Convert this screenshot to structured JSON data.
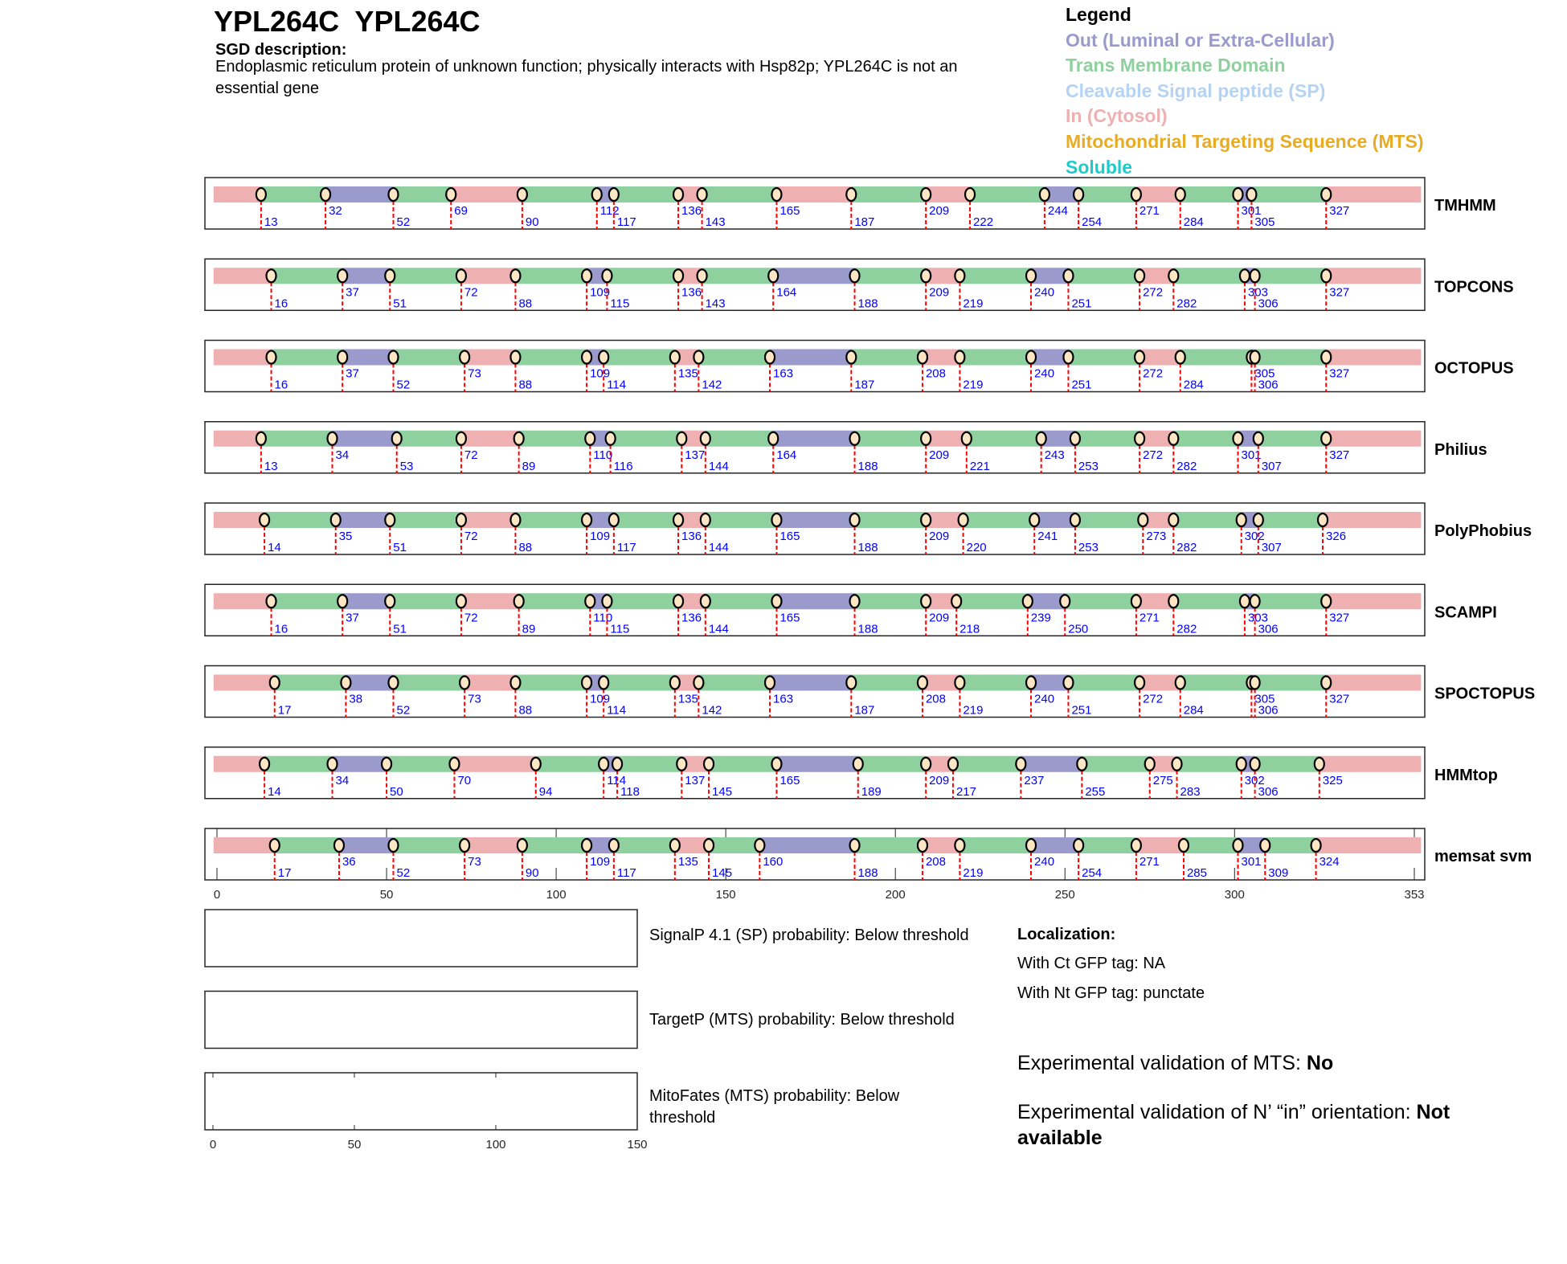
{
  "header": {
    "title": "YPL264C  YPL264C",
    "sgd_label": "SGD description:",
    "sgd_text": "Endoplasmic reticulum protein of unknown function; physically interacts with Hsp82p; YPL264C is not an essential gene"
  },
  "legend": {
    "title": "Legend",
    "items": [
      {
        "label": "Out (Luminal or Extra-Cellular)",
        "color": "#9a9acc"
      },
      {
        "label": "Trans Membrane Domain",
        "color": "#8fd19e"
      },
      {
        "label": "Cleavable Signal peptide (SP)",
        "color": "#b5d3f3"
      },
      {
        "label": "In (Cytosol)",
        "color": "#eeb0b0"
      },
      {
        "label": "Mitochondrial Targeting Sequence (MTS)",
        "color": "#e8ac22"
      },
      {
        "label": "Soluble",
        "color": "#1ccccc"
      }
    ]
  },
  "chart_data": {
    "type": "topology-tracks",
    "xlim": [
      0,
      353
    ],
    "x_ticks": [
      "0",
      "50",
      "100",
      "150",
      "200",
      "250",
      "300",
      "353"
    ],
    "segment_colors": {
      "i": "#eeb0b0",
      "M": "#8fd19e",
      "o": "#9a9acc"
    },
    "tracks": [
      {
        "name": "TMHMM",
        "boundaries": [
          13,
          32,
          52,
          69,
          90,
          112,
          117,
          136,
          143,
          165,
          187,
          209,
          222,
          244,
          254,
          271,
          284,
          301,
          305,
          327
        ],
        "segments": "iMoMiMoMiMiMiMoMiMoMi"
      },
      {
        "name": "TOPCONS",
        "boundaries": [
          16,
          37,
          51,
          72,
          88,
          109,
          115,
          136,
          143,
          164,
          188,
          209,
          219,
          240,
          251,
          272,
          282,
          303,
          306,
          327
        ],
        "segments": "iMoMiMoMiMoMiMoMiMoMi"
      },
      {
        "name": "OCTOPUS",
        "boundaries": [
          16,
          37,
          52,
          73,
          88,
          109,
          114,
          135,
          142,
          163,
          187,
          208,
          219,
          240,
          251,
          272,
          284,
          305,
          306,
          327
        ],
        "segments": "iMoMiMoMiMoMiMoMiMoMi"
      },
      {
        "name": "Philius",
        "boundaries": [
          13,
          34,
          53,
          72,
          89,
          110,
          116,
          137,
          144,
          164,
          188,
          209,
          221,
          243,
          253,
          272,
          282,
          301,
          307,
          327
        ],
        "segments": "iMoMiMoMiMoMiMoMiMoMi"
      },
      {
        "name": "PolyPhobius",
        "boundaries": [
          14,
          35,
          51,
          72,
          88,
          109,
          117,
          136,
          144,
          165,
          188,
          209,
          220,
          241,
          253,
          273,
          282,
          302,
          307,
          326
        ],
        "segments": "iMoMiMoMiMoMiMoMiMoMi"
      },
      {
        "name": "SCAMPI",
        "boundaries": [
          16,
          37,
          51,
          72,
          89,
          110,
          115,
          136,
          144,
          165,
          188,
          209,
          218,
          239,
          250,
          271,
          282,
          303,
          306,
          327
        ],
        "segments": "iMoMiMoMiMoMiMoMiMoMi"
      },
      {
        "name": "SPOCTOPUS",
        "boundaries": [
          17,
          38,
          52,
          73,
          88,
          109,
          114,
          135,
          142,
          163,
          187,
          208,
          219,
          240,
          251,
          272,
          284,
          305,
          306,
          327
        ],
        "segments": "iMoMiMoMiMoMiMoMiMoMi"
      },
      {
        "name": "HMMtop",
        "boundaries": [
          14,
          34,
          50,
          70,
          94,
          114,
          118,
          137,
          145,
          165,
          189,
          209,
          217,
          237,
          255,
          275,
          283,
          302,
          306,
          325
        ],
        "segments": "iMoMiMoMiMoMiMoMiMoMi"
      },
      {
        "name": "memsat svm",
        "boundaries": [
          17,
          36,
          52,
          73,
          90,
          109,
          117,
          135,
          145,
          160,
          188,
          208,
          219,
          240,
          254,
          271,
          285,
          301,
          309,
          324
        ],
        "segments": "iMoMiMoMiMoMiMoMiMoMi"
      }
    ],
    "probability_panels": {
      "xlim": [
        0,
        150
      ],
      "x_ticks": [
        "0",
        "50",
        "100",
        "150"
      ],
      "panels": [
        {
          "label": "SignalP 4.1 (SP) probability: Below threshold"
        },
        {
          "label": "TargetP (MTS) probability: Below threshold"
        },
        {
          "label_line1": "MitoFates (MTS) probability: Below",
          "label_line2": "threshold"
        }
      ]
    }
  },
  "localization": {
    "title": "Localization:",
    "ct": "With Ct GFP tag: NA",
    "nt": "With Nt GFP tag: punctate",
    "mts_label": "Experimental validation of MTS: ",
    "mts_value": "No",
    "nin_label": "Experimental validation of N’ “in” orientation: ",
    "nin_value": "Not available"
  }
}
